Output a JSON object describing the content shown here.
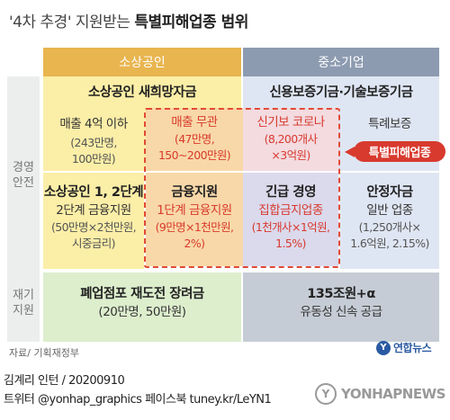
{
  "title": {
    "normal": "'4차 추경' 지원받는 ",
    "bold": "특별피해업종 범위"
  },
  "columns": {
    "sme": "소상공인",
    "mid": "중소기업"
  },
  "row_labels": {
    "management": "경영\n안전",
    "restart": "재기\n지원"
  },
  "cells": {
    "sme_hope": {
      "title": "소상공인 새희망자금",
      "line1": "매출 4억 이하",
      "line2": "(243만명,",
      "line3": "100만원)"
    },
    "sales_free": {
      "title": "매출 무관",
      "line1": "(47만명,",
      "line2": "150~200만원)"
    },
    "kodit_corona": {
      "title": "신기보 코로나",
      "line1": "(8,200개사",
      "line2": "×3억원)"
    },
    "credit_guarantee": {
      "title": "신용보증기금·기술보증기금",
      "line1": "특례보증"
    },
    "sme_stage": {
      "title": "소상공인 1, 2단계",
      "line1": "2단계 금융지원",
      "line2": "(50만명×2천만원,",
      "line3": "시중금리)"
    },
    "finance": {
      "title": "금융지원",
      "line1": "1단계 금융지원",
      "line2": "(9만명×1천만원,",
      "line3": "2%)"
    },
    "urgent": {
      "title": "긴급 경영",
      "line1": "집합금지업종",
      "line2": "(1천개사×1억원,",
      "line3": "1.5%)"
    },
    "stability": {
      "title": "안정자금",
      "line1": "일반 업종",
      "line2": "(1,250개사×",
      "line3": "1.6억원, 2.15%)"
    },
    "closed_restart": {
      "title": "폐업점포 재도전 장려금",
      "line1": "(20만명, 50만원)"
    },
    "liquidity": {
      "title": "135조원+α",
      "line1": "유동성 신속 공급"
    }
  },
  "badge": "특별피해업종",
  "source": "자료/ 기획재정부",
  "logo": "연합뉴스",
  "footer": {
    "line1": "김계리 인턴 / 20200910",
    "line2": "트위터 @yonhap_graphics  페이스북 tuney.kr/LeYN1"
  },
  "watermark": "YONHAPNEWS"
}
